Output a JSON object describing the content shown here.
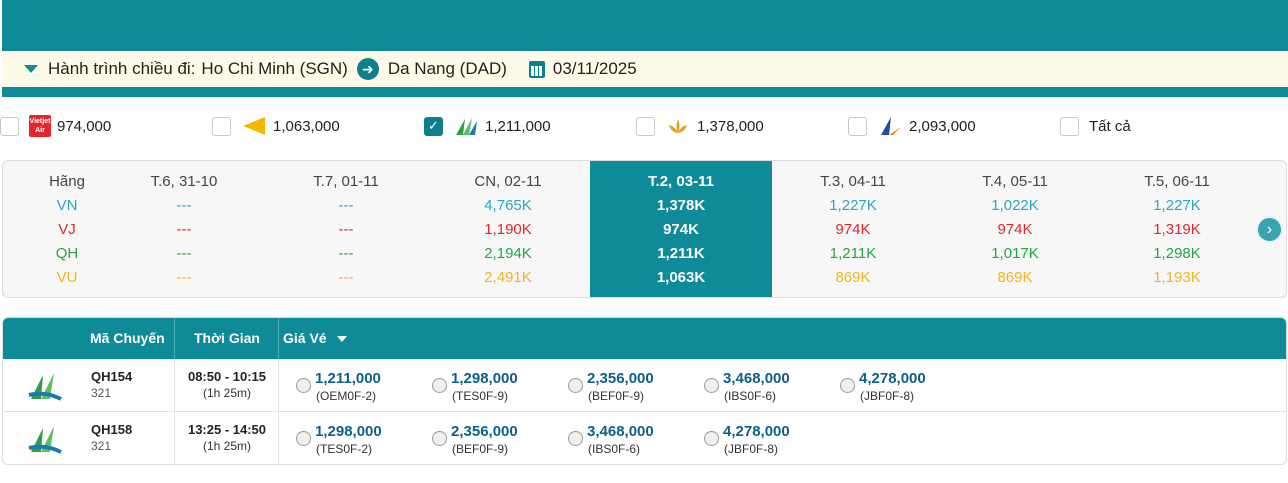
{
  "route": {
    "label": "Hành trình chiều đi:",
    "origin": "Ho Chi Minh (SGN)",
    "destination": "Da Nang (DAD)",
    "date": "03/11/2025"
  },
  "airline_filter": [
    {
      "logo": "vietjet-logo",
      "price": "974,000",
      "checked": false
    },
    {
      "logo": "vietravel-logo",
      "price": "1,063,000",
      "checked": false
    },
    {
      "logo": "bamboo-logo",
      "price": "1,211,000",
      "checked": true
    },
    {
      "logo": "vietnam-airlines-logo",
      "price": "1,378,000",
      "checked": false
    },
    {
      "logo": "pacific-logo",
      "price": "2,093,000",
      "checked": false
    },
    {
      "logo": "",
      "price": "Tất cả",
      "checked": false
    }
  ],
  "price_matrix": {
    "airline_header": "Hãng",
    "airlines": [
      "VN",
      "VJ",
      "QH",
      "VU"
    ],
    "days": [
      {
        "label": "T.6, 31-10",
        "values": [
          "---",
          "---",
          "---",
          "---"
        ]
      },
      {
        "label": "T.7, 01-11",
        "values": [
          "---",
          "---",
          "---",
          "---"
        ]
      },
      {
        "label": "CN, 02-11",
        "values": [
          "4,765K",
          "1,190K",
          "2,194K",
          "2,491K"
        ]
      },
      {
        "label": "T.2, 03-11",
        "values": [
          "1,378K",
          "974K",
          "1,211K",
          "1,063K"
        ]
      },
      {
        "label": "T.3, 04-11",
        "values": [
          "1,227K",
          "974K",
          "1,211K",
          "869K"
        ]
      },
      {
        "label": "T.4, 05-11",
        "values": [
          "1,022K",
          "974K",
          "1,017K",
          "869K"
        ]
      },
      {
        "label": "T.5, 06-11",
        "values": [
          "1,227K",
          "1,319K",
          "1,298K",
          "1,193K"
        ]
      }
    ]
  },
  "flights_table": {
    "headers": {
      "code": "Mã Chuyến",
      "time": "Thời Gian",
      "price": "Giá Vé"
    },
    "rows": [
      {
        "code": "QH154",
        "aircraft": "321",
        "time": "08:50 - 10:15",
        "duration": "(1h 25m)",
        "fares": [
          {
            "amount": "1,211,000",
            "class": "(OEM0F-2)"
          },
          {
            "amount": "1,298,000",
            "class": "(TES0F-9)"
          },
          {
            "amount": "2,356,000",
            "class": "(BEF0F-9)"
          },
          {
            "amount": "3,468,000",
            "class": "(IBS0F-6)"
          },
          {
            "amount": "4,278,000",
            "class": "(JBF0F-8)"
          }
        ]
      },
      {
        "code": "QH158",
        "aircraft": "321",
        "time": "13:25 - 14:50",
        "duration": "(1h 25m)",
        "fares": [
          {
            "amount": "1,298,000",
            "class": "(TES0F-2)"
          },
          {
            "amount": "2,356,000",
            "class": "(BEF0F-9)"
          },
          {
            "amount": "3,468,000",
            "class": "(IBS0F-6)"
          },
          {
            "amount": "4,278,000",
            "class": "(JBF0F-8)"
          }
        ]
      }
    ]
  }
}
